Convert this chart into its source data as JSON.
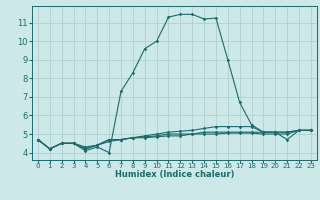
{
  "xlabel": "Humidex (Indice chaleur)",
  "bg_color": "#cce8e8",
  "grid_color": "#aacccc",
  "line_color": "#1a6b6b",
  "xlim": [
    -0.5,
    23.5
  ],
  "ylim": [
    3.6,
    11.9
  ],
  "xticks": [
    0,
    1,
    2,
    3,
    4,
    5,
    6,
    7,
    8,
    9,
    10,
    11,
    12,
    13,
    14,
    15,
    16,
    17,
    18,
    19,
    20,
    21,
    22,
    23
  ],
  "yticks": [
    4,
    5,
    6,
    7,
    8,
    9,
    10,
    11
  ],
  "series": [
    [
      4.7,
      4.2,
      4.5,
      4.5,
      4.1,
      4.3,
      4.0,
      7.3,
      8.3,
      9.6,
      10.0,
      11.3,
      11.45,
      11.45,
      11.2,
      11.25,
      9.0,
      6.7,
      5.5,
      5.1,
      5.1,
      4.7,
      5.2,
      5.2
    ],
    [
      4.7,
      4.2,
      4.5,
      4.5,
      4.2,
      4.4,
      4.7,
      4.7,
      4.8,
      4.9,
      5.0,
      5.1,
      5.15,
      5.2,
      5.3,
      5.4,
      5.4,
      5.4,
      5.4,
      5.1,
      5.1,
      5.1,
      5.2,
      5.2
    ],
    [
      4.7,
      4.2,
      4.5,
      4.5,
      4.2,
      4.4,
      4.7,
      4.7,
      4.8,
      4.85,
      4.9,
      5.0,
      5.0,
      5.0,
      5.1,
      5.1,
      5.1,
      5.1,
      5.1,
      5.1,
      5.1,
      5.1,
      5.2,
      5.2
    ],
    [
      4.7,
      4.2,
      4.5,
      4.5,
      4.3,
      4.4,
      4.6,
      4.7,
      4.8,
      4.8,
      4.85,
      4.9,
      4.9,
      5.0,
      5.0,
      5.0,
      5.05,
      5.05,
      5.05,
      5.0,
      5.0,
      5.0,
      5.2,
      5.2
    ]
  ]
}
